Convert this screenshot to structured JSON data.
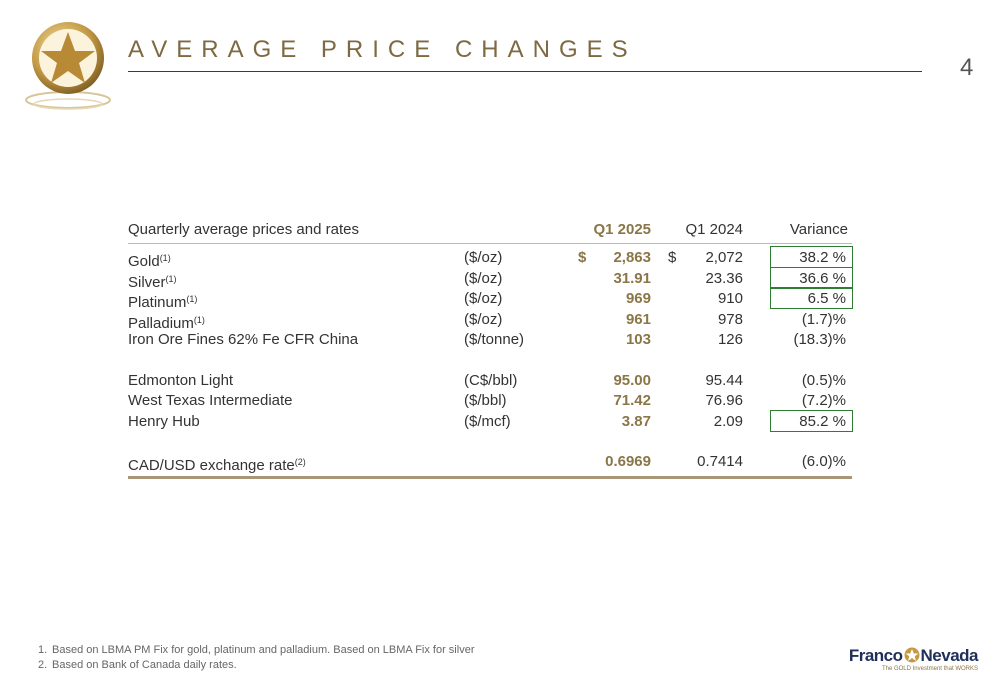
{
  "header": {
    "title": "AVERAGE PRICE CHANGES",
    "page_number": "4"
  },
  "table": {
    "columns": {
      "label": "Quarterly average prices and rates",
      "current": "Q1 2025",
      "prior": "Q1 2024",
      "variance": "Variance"
    },
    "groups": [
      {
        "rows": [
          {
            "name": "Gold",
            "note": "(1)",
            "unit": "($/oz)",
            "currency": "$",
            "current": "2,863",
            "prior": "2,072",
            "variance": "38.2 %",
            "highlight": true
          },
          {
            "name": "Silver",
            "note": "(1)",
            "unit": "($/oz)",
            "current": "31.91",
            "prior": "23.36",
            "variance": "36.6 %",
            "highlight": true
          },
          {
            "name": "Platinum",
            "note": "(1)",
            "unit": "($/oz)",
            "current": "969",
            "prior": "910",
            "variance": "6.5 %",
            "highlight": true
          },
          {
            "name": "Palladium",
            "note": "(1)",
            "unit": "($/oz)",
            "current": "961",
            "prior": "978",
            "variance": "(1.7)%"
          },
          {
            "name": "Iron Ore Fines 62% Fe CFR China",
            "unit": "($/tonne)",
            "current": "103",
            "prior": "126",
            "variance": "(18.3)%"
          }
        ]
      },
      {
        "rows": [
          {
            "name": "Edmonton Light",
            "unit": "(C$/bbl)",
            "current": "95.00",
            "prior": "95.44",
            "variance": "(0.5)%"
          },
          {
            "name": "West Texas Intermediate",
            "unit": "($/bbl)",
            "current": "71.42",
            "prior": "76.96",
            "variance": "(7.2)%"
          },
          {
            "name": "Henry Hub",
            "unit": "($/mcf)",
            "current": "3.87",
            "prior": "2.09",
            "variance": "85.2 %",
            "highlight": true
          }
        ]
      },
      {
        "rows": [
          {
            "name": "CAD/USD exchange rate",
            "note": "(2)",
            "current": "0.6969",
            "prior": "0.7414",
            "variance": "(6.0)%"
          }
        ]
      }
    ]
  },
  "footnotes": [
    {
      "number": "1.",
      "text": "Based on LBMA PM Fix for gold, platinum and palladium. Based on LBMA Fix for silver"
    },
    {
      "number": "2.",
      "text": "Based on Bank of Canada daily rates."
    }
  ],
  "logo": {
    "name_left": "Franco",
    "name_right": "Nevada",
    "tagline": "The GOLD Investment that WORKS"
  }
}
